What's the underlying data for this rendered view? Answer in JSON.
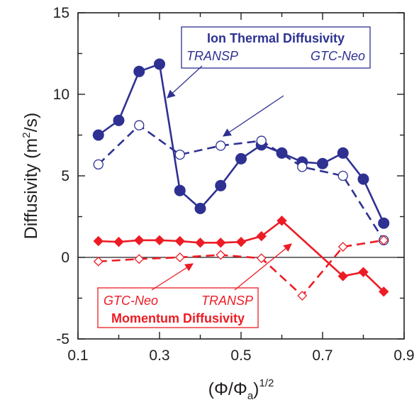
{
  "colors": {
    "blue": "#2e3192",
    "red": "#ed1c24",
    "axis": "#231f20"
  },
  "chart_data": {
    "type": "line",
    "xlabel_main": "(Φ/Φ",
    "xlabel_sub": "a",
    "xlabel_close": ")",
    "xlabel_sup": "1/2",
    "ylabel_main": "Diffusivity (m",
    "ylabel_sup": "2",
    "ylabel_close": "/s)",
    "xlim": [
      0.1,
      0.9
    ],
    "ylim": [
      -5,
      15
    ],
    "xticks": [
      0.1,
      0.3,
      0.5,
      0.7,
      0.9
    ],
    "xtick_labels": [
      "0.1",
      "0.3",
      "0.5",
      "0.7",
      "0.9"
    ],
    "yticks": [
      -5,
      0,
      5,
      10,
      15
    ],
    "ytick_labels": [
      "-5",
      "0",
      "5",
      "10",
      "15"
    ],
    "zero_line": true,
    "grid": false,
    "series": [
      {
        "name": "TRANSP",
        "group": "Ion Thermal Diffusivity",
        "color": "#2e3192",
        "marker": "circle-filled",
        "line": "solid",
        "x": [
          0.15,
          0.2,
          0.25,
          0.3,
          0.35,
          0.4,
          0.45,
          0.5,
          0.55,
          0.6,
          0.65,
          0.7,
          0.75,
          0.8,
          0.85
        ],
        "y": [
          7.5,
          8.4,
          11.4,
          11.85,
          4.1,
          3.0,
          4.4,
          6.05,
          6.9,
          6.4,
          5.85,
          5.75,
          6.4,
          4.8,
          2.1
        ]
      },
      {
        "name": "GTC-Neo",
        "group": "Ion Thermal Diffusivity",
        "color": "#2e3192",
        "marker": "circle-open",
        "line": "dashed",
        "x": [
          0.15,
          0.25,
          0.35,
          0.45,
          0.55,
          0.65,
          0.75,
          0.85
        ],
        "y": [
          5.7,
          8.1,
          6.3,
          6.85,
          7.15,
          5.55,
          5.0,
          1.05
        ]
      },
      {
        "name": "TRANSP",
        "group": "Momentum Diffusivity",
        "color": "#ed1c24",
        "marker": "diamond-filled",
        "line": "solid",
        "x": [
          0.15,
          0.2,
          0.25,
          0.3,
          0.35,
          0.4,
          0.45,
          0.5,
          0.55,
          0.6,
          0.75,
          0.8,
          0.85
        ],
        "y": [
          1.0,
          0.95,
          1.05,
          1.05,
          1.0,
          0.9,
          0.9,
          0.95,
          1.3,
          2.25,
          -1.15,
          -0.9,
          -2.1
        ]
      },
      {
        "name": "GTC-Neo",
        "group": "Momentum Diffusivity",
        "color": "#ed1c24",
        "marker": "diamond-open",
        "line": "dashed",
        "x": [
          0.15,
          0.25,
          0.35,
          0.45,
          0.55,
          0.65,
          0.75,
          0.85
        ],
        "y": [
          -0.25,
          -0.1,
          0.0,
          0.15,
          -0.05,
          -2.35,
          0.65,
          1.05
        ]
      }
    ],
    "annotations": {
      "ion_title": "Ion Thermal Diffusivity",
      "ion_transp": "TRANSP",
      "ion_gtc": "GTC-Neo",
      "mom_title": "Momentum Diffusivity",
      "mom_transp": "TRANSP",
      "mom_gtc": "GTC-Neo"
    }
  }
}
